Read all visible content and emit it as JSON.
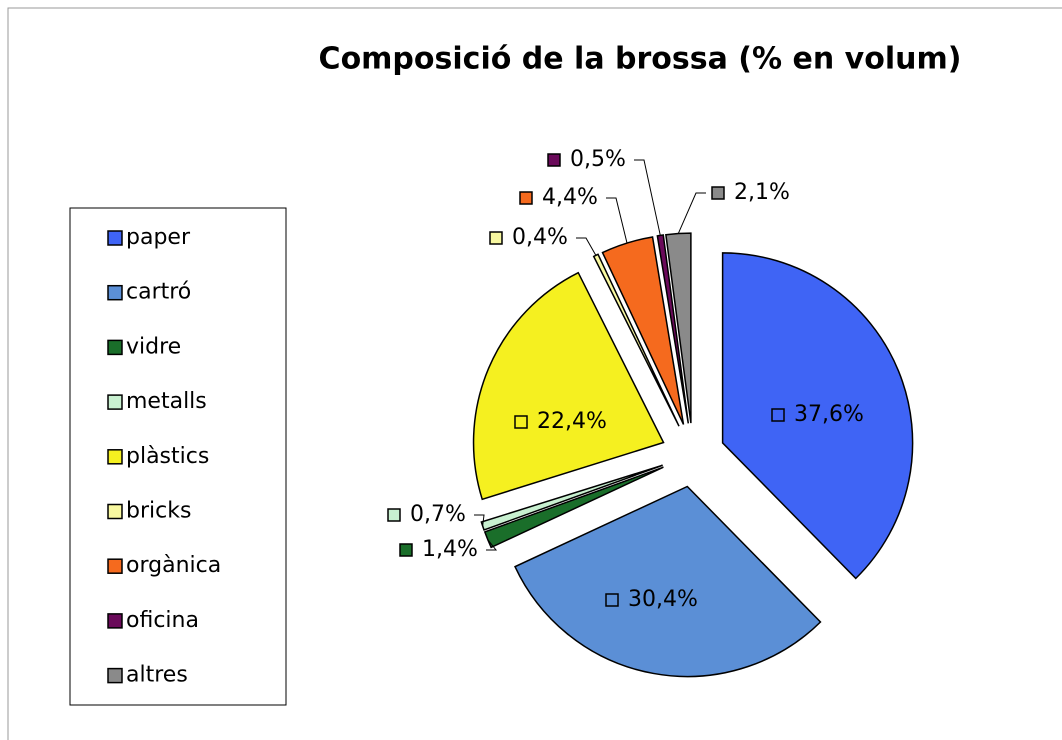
{
  "chart_data": {
    "type": "pie",
    "title": "Composició de la brossa (% en volum)",
    "categories": [
      "paper",
      "cartró",
      "vidre",
      "metalls",
      "plàstics",
      "bricks",
      "orgànica",
      "oficina",
      "altres"
    ],
    "values": [
      37.6,
      30.4,
      1.4,
      0.7,
      22.4,
      0.4,
      4.4,
      0.5,
      2.1
    ],
    "value_labels": [
      "37,6%",
      "30,4%",
      "1,4%",
      "0,7%",
      "22,4%",
      "0,4%",
      "4,4%",
      "0,5%",
      "2,1%"
    ],
    "colors": [
      "#3f64f5",
      "#5b8fd6",
      "#1a6e2a",
      "#c8f0d0",
      "#f5f020",
      "#f8f8a0",
      "#f56a1e",
      "#6a0a5a",
      "#8a8a8a"
    ],
    "legend": "left"
  }
}
